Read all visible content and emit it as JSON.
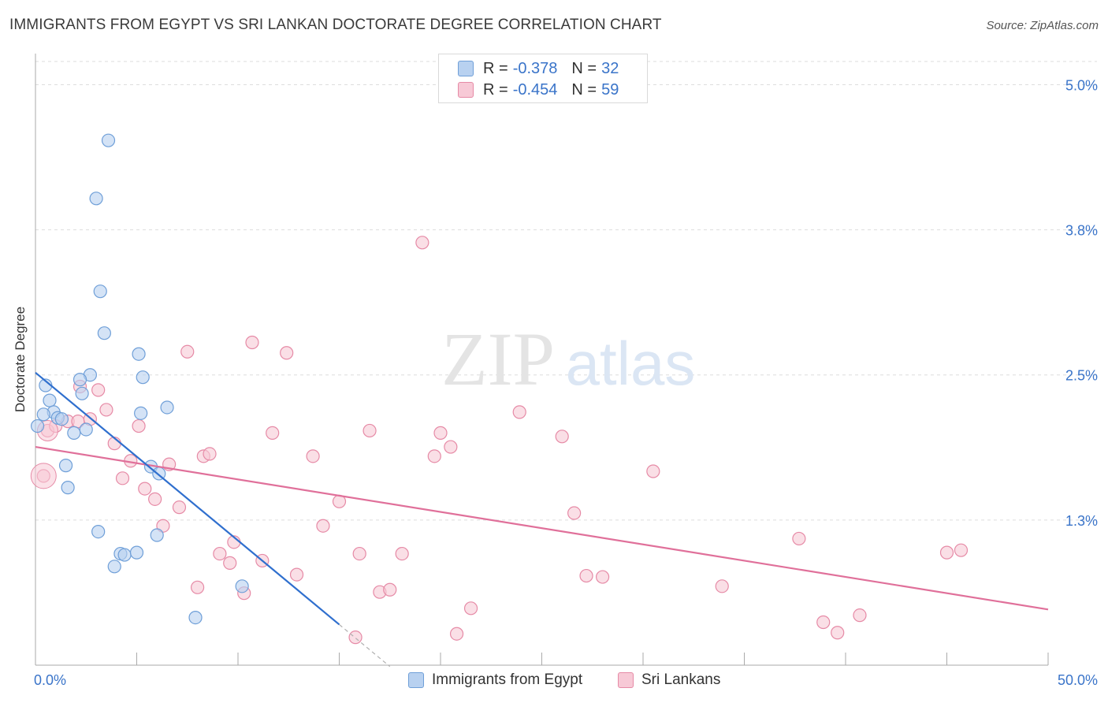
{
  "title": "IMMIGRANTS FROM EGYPT VS SRI LANKAN DOCTORATE DEGREE CORRELATION CHART",
  "source": "Source: ZipAtlas.com",
  "watermark": {
    "zip": "ZIP",
    "atlas": "atlas"
  },
  "legend": {
    "rows": [
      {
        "r_label": "R =",
        "r_value": "-0.378",
        "n_label": "N =",
        "n_value": "32"
      },
      {
        "r_label": "R =",
        "r_value": "-0.454",
        "n_label": "N =",
        "n_value": "59"
      }
    ]
  },
  "colors": {
    "blue_fill": "#b8d1f0",
    "blue_stroke": "#6f9fd8",
    "blue_line": "#2f6fce",
    "pink_fill": "#f7c9d6",
    "pink_stroke": "#e68aa6",
    "pink_line": "#e0709a",
    "tick_label": "#3a74c9",
    "grid": "#dddddd"
  },
  "chart_data": {
    "type": "scatter",
    "title": "IMMIGRANTS FROM EGYPT VS SRI LANKAN DOCTORATE DEGREE CORRELATION CHART",
    "xlabel": "",
    "ylabel": "Doctorate Degree",
    "xlim": [
      0,
      50
    ],
    "ylim": [
      0,
      5.2
    ],
    "x_tick_labels": [
      "0.0%",
      "50.0%"
    ],
    "y_ticks": [
      {
        "value": 1.25,
        "label": "1.3%"
      },
      {
        "value": 2.5,
        "label": "2.5%"
      },
      {
        "value": 3.75,
        "label": "3.8%"
      },
      {
        "value": 5.0,
        "label": "5.0%"
      }
    ],
    "series": [
      {
        "name": "Immigrants from Egypt",
        "color": "blue",
        "points": [
          [
            3.6,
            4.52
          ],
          [
            3.0,
            4.02
          ],
          [
            3.2,
            3.22
          ],
          [
            3.4,
            2.86
          ],
          [
            5.1,
            2.68
          ],
          [
            5.3,
            2.48
          ],
          [
            2.7,
            2.5
          ],
          [
            2.2,
            2.46
          ],
          [
            0.5,
            2.41
          ],
          [
            2.3,
            2.34
          ],
          [
            0.7,
            2.28
          ],
          [
            0.9,
            2.18
          ],
          [
            5.2,
            2.17
          ],
          [
            6.5,
            2.22
          ],
          [
            0.4,
            2.16
          ],
          [
            1.1,
            2.13
          ],
          [
            1.3,
            2.12
          ],
          [
            2.5,
            2.03
          ],
          [
            1.9,
            2.0
          ],
          [
            0.1,
            2.06
          ],
          [
            1.5,
            1.72
          ],
          [
            5.7,
            1.71
          ],
          [
            6.1,
            1.65
          ],
          [
            1.6,
            1.53
          ],
          [
            3.1,
            1.15
          ],
          [
            6.0,
            1.12
          ],
          [
            4.2,
            0.96
          ],
          [
            4.4,
            0.95
          ],
          [
            5.0,
            0.97
          ],
          [
            3.9,
            0.85
          ],
          [
            10.2,
            0.68
          ],
          [
            7.9,
            0.41
          ]
        ],
        "trend": {
          "x1": 0.0,
          "y1": 2.52,
          "x2": 15.0,
          "y2": 0.35,
          "dashed_to_x": 17.5
        }
      },
      {
        "name": "Sri Lankans",
        "color": "pink",
        "points": [
          [
            0.4,
            1.63
          ],
          [
            0.6,
            2.02
          ],
          [
            1.0,
            2.06
          ],
          [
            1.6,
            2.1
          ],
          [
            2.1,
            2.1
          ],
          [
            2.2,
            2.4
          ],
          [
            2.7,
            2.12
          ],
          [
            3.1,
            2.37
          ],
          [
            3.5,
            2.2
          ],
          [
            3.9,
            1.91
          ],
          [
            4.3,
            1.61
          ],
          [
            4.7,
            1.76
          ],
          [
            5.1,
            2.06
          ],
          [
            5.4,
            1.52
          ],
          [
            5.9,
            1.43
          ],
          [
            6.3,
            1.2
          ],
          [
            6.6,
            1.73
          ],
          [
            7.1,
            1.36
          ],
          [
            7.5,
            2.7
          ],
          [
            8.0,
            0.67
          ],
          [
            8.3,
            1.8
          ],
          [
            8.6,
            1.82
          ],
          [
            9.1,
            0.96
          ],
          [
            9.6,
            0.88
          ],
          [
            9.8,
            1.06
          ],
          [
            10.3,
            0.62
          ],
          [
            10.7,
            2.78
          ],
          [
            11.2,
            0.9
          ],
          [
            11.7,
            2.0
          ],
          [
            12.4,
            2.69
          ],
          [
            12.9,
            0.78
          ],
          [
            13.7,
            1.8
          ],
          [
            14.2,
            1.2
          ],
          [
            15.0,
            1.41
          ],
          [
            15.8,
            0.24
          ],
          [
            16.0,
            0.96
          ],
          [
            16.5,
            2.02
          ],
          [
            17.0,
            0.63
          ],
          [
            17.5,
            0.65
          ],
          [
            18.1,
            0.96
          ],
          [
            19.1,
            3.64
          ],
          [
            19.7,
            1.8
          ],
          [
            20.0,
            2.0
          ],
          [
            20.5,
            1.88
          ],
          [
            20.8,
            0.27
          ],
          [
            21.5,
            0.49
          ],
          [
            23.9,
            2.18
          ],
          [
            26.0,
            1.97
          ],
          [
            26.6,
            1.31
          ],
          [
            27.2,
            0.77
          ],
          [
            28.0,
            0.76
          ],
          [
            30.5,
            1.67
          ],
          [
            33.9,
            0.68
          ],
          [
            37.7,
            1.09
          ],
          [
            38.9,
            0.37
          ],
          [
            39.6,
            0.28
          ],
          [
            40.7,
            0.43
          ],
          [
            45.0,
            0.97
          ],
          [
            45.7,
            0.99
          ]
        ],
        "trend": {
          "x1": 0.0,
          "y1": 1.88,
          "x2": 50.0,
          "y2": 0.48
        }
      }
    ]
  },
  "bottom_legend": [
    {
      "label": "Immigrants from Egypt"
    },
    {
      "label": "Sri Lankans"
    }
  ]
}
